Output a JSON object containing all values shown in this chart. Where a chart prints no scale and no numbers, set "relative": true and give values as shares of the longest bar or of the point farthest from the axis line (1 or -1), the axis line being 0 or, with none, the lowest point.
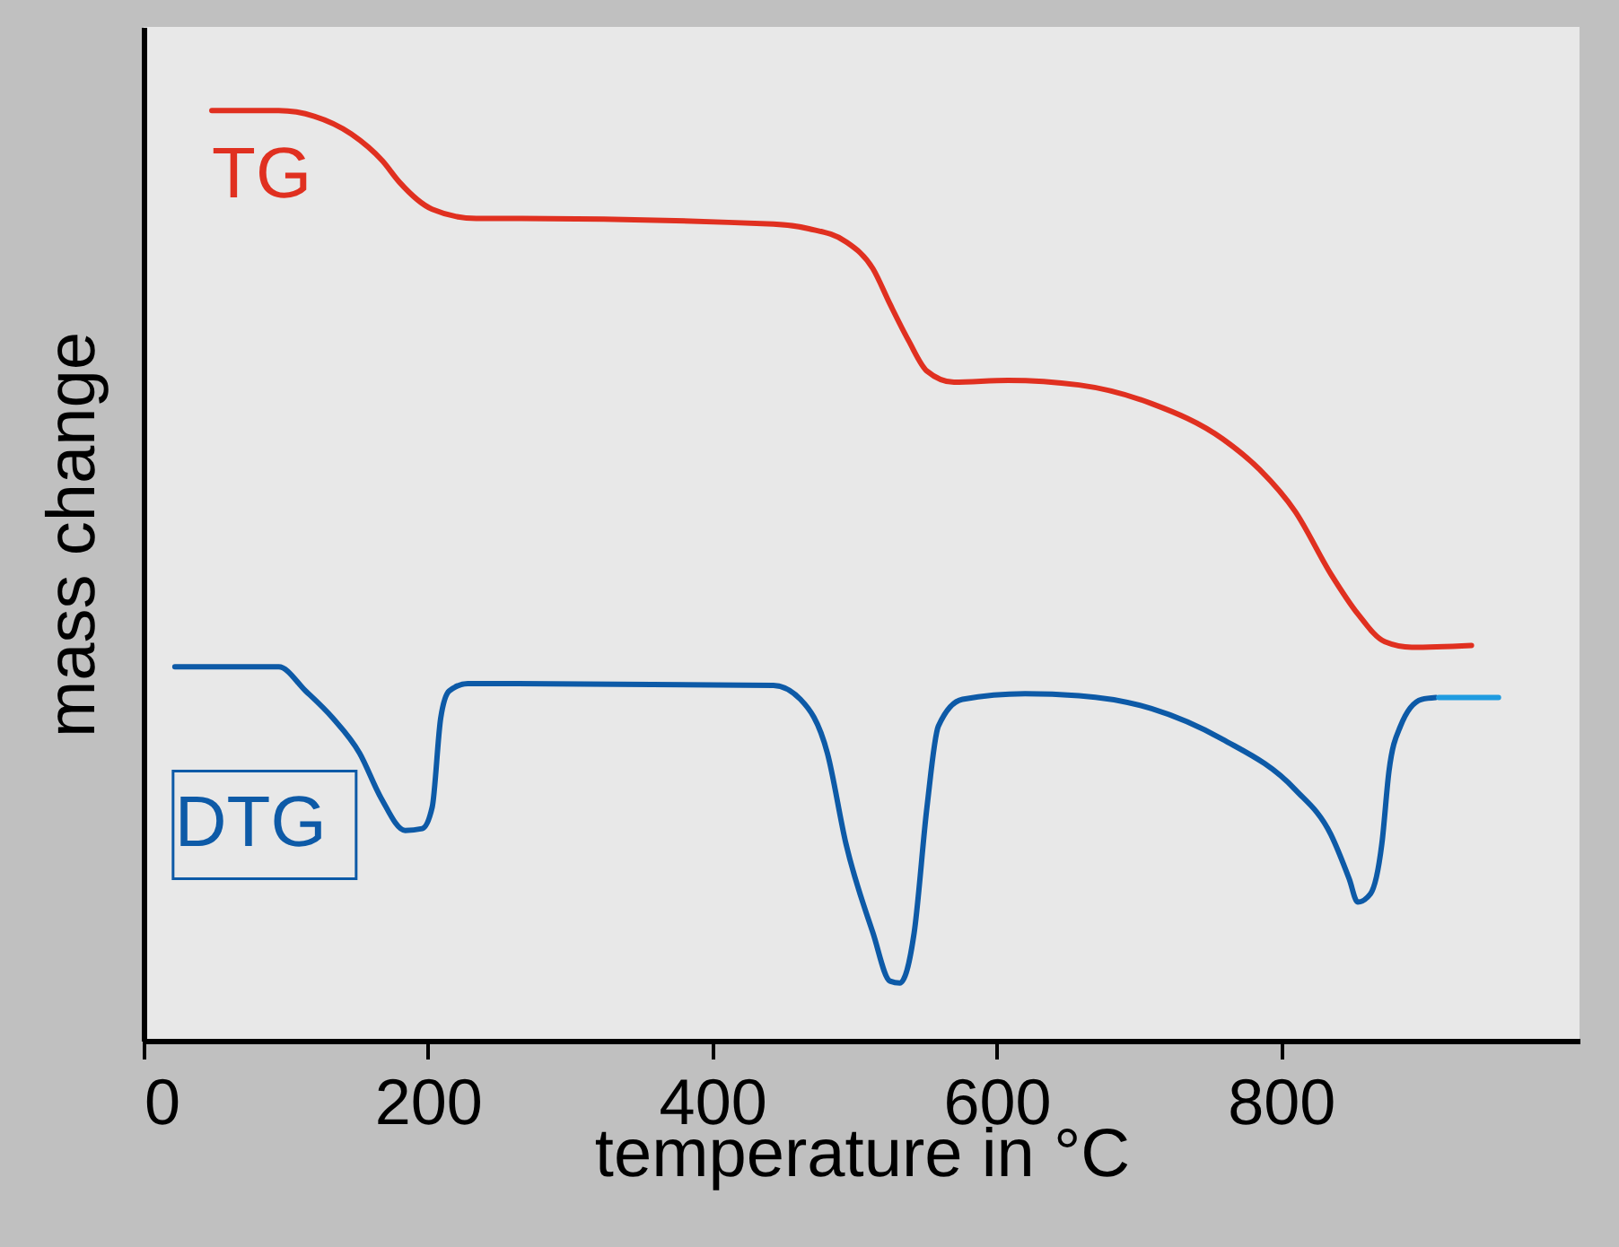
{
  "chart_data": {
    "type": "line",
    "relative": true,
    "xlabel": "temperature in °C",
    "ylabel": "mass change",
    "xlim": [
      0,
      1010
    ],
    "xticks": [
      0,
      200,
      400,
      600,
      800
    ],
    "grid": false,
    "marker": "none",
    "line_style": "solid",
    "series": [
      {
        "name": "TG",
        "color": "#e03020",
        "x": [
          48,
          95,
          120,
          146,
          168,
          180,
          203,
          234,
          266,
          443,
          468,
          494,
          513,
          525,
          538,
          551,
          570,
          608,
          658,
          709,
          759,
          785,
          810,
          835,
          854,
          873,
          892,
          934
        ],
        "values": [
          1.0,
          1.0,
          0.994,
          0.975,
          0.946,
          0.923,
          0.894,
          0.884,
          0.884,
          0.878,
          0.873,
          0.859,
          0.83,
          0.792,
          0.753,
          0.72,
          0.708,
          0.71,
          0.705,
          0.685,
          0.647,
          0.614,
          0.569,
          0.502,
          0.459,
          0.429,
          0.423,
          0.425
        ]
      },
      {
        "name": "DTG",
        "color": "#0d5aa7",
        "x": [
          22,
          95,
          114,
          133,
          152,
          167,
          184,
          196,
          203,
          209,
          215,
          228,
          443,
          462,
          481,
          494,
          513,
          525,
          532,
          542,
          551,
          559,
          576,
          620,
          658,
          709,
          759,
          810,
          835,
          848,
          854,
          863,
          871,
          876,
          884,
          899,
          909
        ],
        "values": [
          0.402,
          0.402,
          0.376,
          0.347,
          0.309,
          0.261,
          0.226,
          0.228,
          0.251,
          0.347,
          0.376,
          0.384,
          0.382,
          0.367,
          0.309,
          0.212,
          0.116,
          0.064,
          0.062,
          0.116,
          0.251,
          0.338,
          0.367,
          0.373,
          0.371,
          0.357,
          0.324,
          0.27,
          0.222,
          0.174,
          0.149,
          0.158,
          0.212,
          0.29,
          0.338,
          0.367,
          0.369
        ]
      },
      {
        "color": "#1f9be0",
        "x": [
          911,
          953
        ],
        "values": [
          0.369,
          0.369
        ]
      }
    ]
  }
}
